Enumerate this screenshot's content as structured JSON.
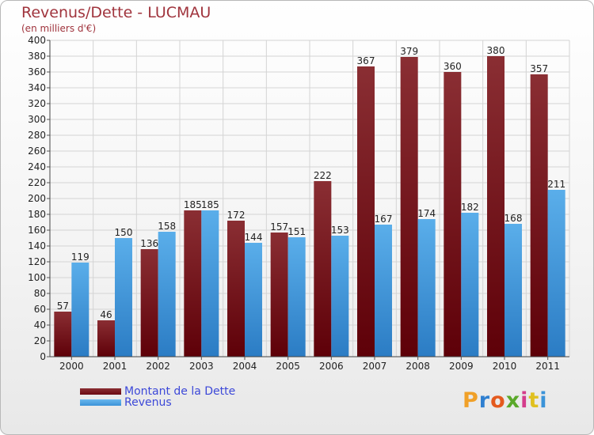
{
  "header": {
    "title": "Revenus/Dette - LUCMAU",
    "subtitle": "(en milliers d'€)"
  },
  "legend": {
    "items": [
      {
        "label": "Montant de la Dette",
        "color": "#6b0a12"
      },
      {
        "label": "Revenus",
        "color": "#3b93d8"
      }
    ]
  },
  "logo": {
    "text": "Proxiti",
    "colors": [
      "#f0a028",
      "#2f7fd0",
      "#e45a1e",
      "#5aa82a",
      "#d43c8c",
      "#e0c020",
      "#3b93d8"
    ]
  },
  "chart_data": {
    "type": "bar",
    "title": "Revenus/Dette - LUCMAU",
    "subtitle": "(en milliers d'€)",
    "categories": [
      "2000",
      "2001",
      "2002",
      "2003",
      "2004",
      "2005",
      "2006",
      "2007",
      "2008",
      "2009",
      "2010",
      "2011"
    ],
    "series": [
      {
        "name": "Montant de la Dette",
        "color": "#7a1e24",
        "values": [
          57,
          46,
          136,
          185,
          172,
          157,
          222,
          367,
          379,
          360,
          380,
          357
        ]
      },
      {
        "name": "Revenus",
        "color": "#3b93d8",
        "values": [
          119,
          150,
          158,
          185,
          144,
          151,
          153,
          167,
          174,
          182,
          168,
          211
        ]
      }
    ],
    "ylim": [
      0,
      400
    ],
    "yticks": [
      0,
      20,
      40,
      60,
      80,
      100,
      120,
      140,
      160,
      180,
      200,
      220,
      240,
      260,
      280,
      300,
      320,
      340,
      360,
      380,
      400
    ],
    "grid": true,
    "legend_position": "bottom-left"
  }
}
